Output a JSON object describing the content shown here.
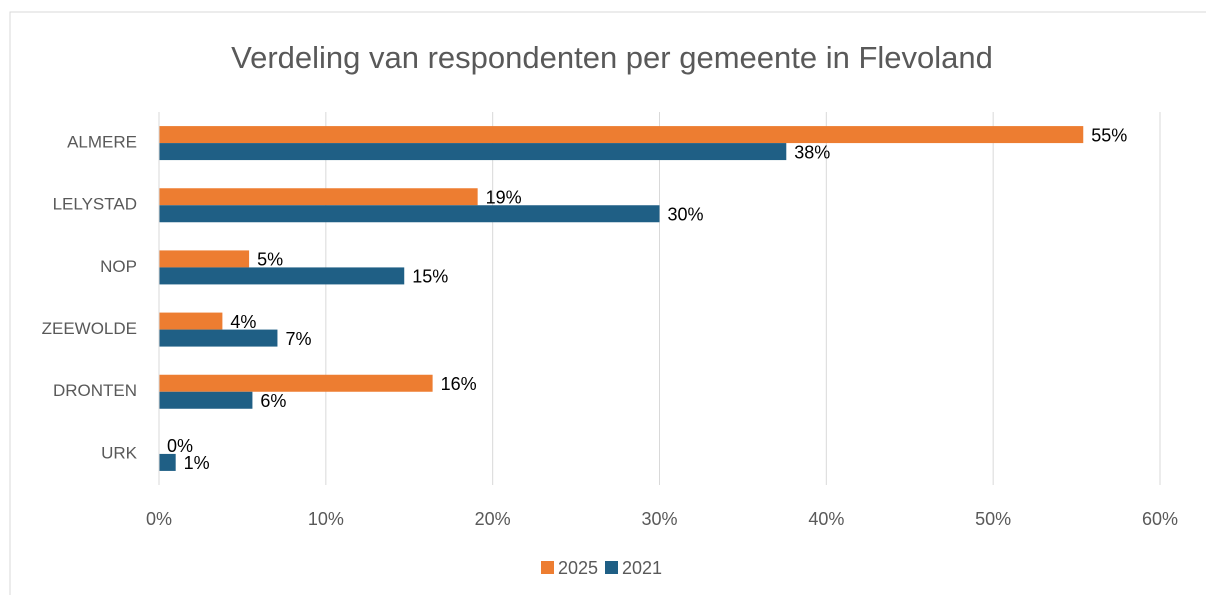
{
  "chart_data": {
    "type": "bar",
    "orientation": "horizontal",
    "title": "Verdeling van respondenten per gemeente in Flevoland",
    "categories": [
      "ALMERE",
      "LELYSTAD",
      "NOP",
      "ZEEWOLDE",
      "DRONTEN",
      "URK"
    ],
    "series": [
      {
        "name": "2025",
        "color": "#ed7d31",
        "values": [
          55.4,
          19.1,
          5.4,
          3.8,
          16.4,
          0
        ],
        "value_labels": [
          "55%",
          "19%",
          "5%",
          "4%",
          "16%",
          "0%"
        ]
      },
      {
        "name": "2021",
        "color": "#1f5f85",
        "values": [
          37.6,
          30.0,
          14.7,
          7.1,
          5.6,
          1.0
        ],
        "value_labels": [
          "38%",
          "30%",
          "15%",
          "7%",
          "6%",
          "1%"
        ]
      }
    ],
    "xlim": [
      0,
      60
    ],
    "xticks": [
      {
        "value": 0,
        "label": "0%"
      },
      {
        "value": 10,
        "label": "10%"
      },
      {
        "value": 20,
        "label": "20%"
      },
      {
        "value": 30,
        "label": "30%"
      },
      {
        "value": 40,
        "label": "40%"
      },
      {
        "value": 50,
        "label": "50%"
      },
      {
        "value": 60,
        "label": "60%"
      }
    ],
    "grid": true,
    "legend": "bottom"
  }
}
